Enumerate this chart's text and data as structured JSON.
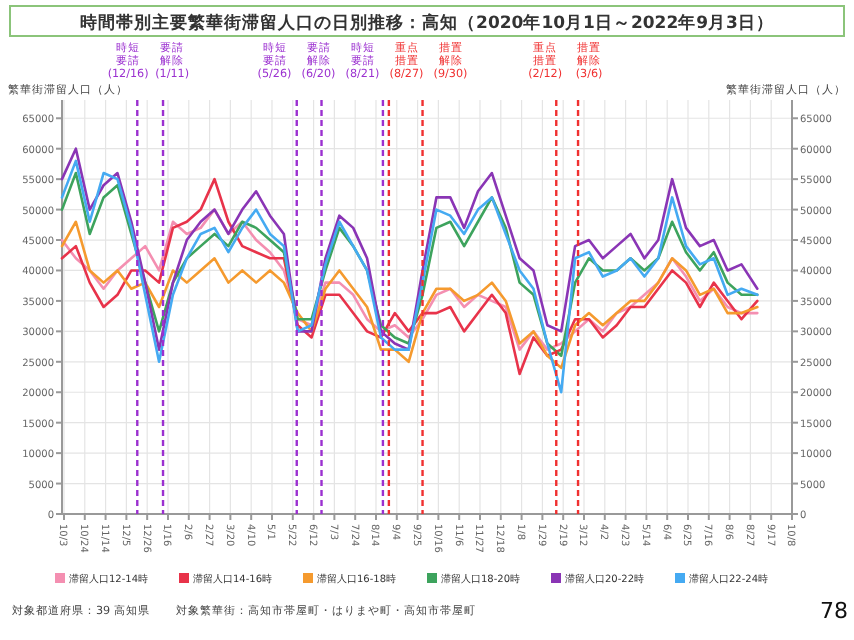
{
  "chart_data": {
    "type": "line",
    "title": "時間帯別主要繁華街滞留人口の日別推移：高知（2020年10月1日～2022年9月3日）",
    "ylabel": "繁華街滞留人口（人）",
    "y2label": "繁華街滞留人口（人）",
    "x": [
      "2020-10-01",
      "2020-10-15",
      "2020-10-29",
      "2020-11-12",
      "2020-11-26",
      "2020-12-10",
      "2020-12-24",
      "2021-01-07",
      "2021-01-21",
      "2021-02-04",
      "2021-02-18",
      "2021-03-04",
      "2021-03-18",
      "2021-04-01",
      "2021-04-15",
      "2021-04-29",
      "2021-05-13",
      "2021-05-27",
      "2021-06-10",
      "2021-06-24",
      "2021-07-08",
      "2021-07-22",
      "2021-08-05",
      "2021-08-19",
      "2021-09-02",
      "2021-09-16",
      "2021-09-30",
      "2021-10-14",
      "2021-10-28",
      "2021-11-11",
      "2021-11-25",
      "2021-12-09",
      "2021-12-23",
      "2022-01-06",
      "2022-01-20",
      "2022-02-03",
      "2022-02-17",
      "2022-03-03",
      "2022-03-17",
      "2022-03-31",
      "2022-04-14",
      "2022-04-28",
      "2022-05-12",
      "2022-05-26",
      "2022-06-09",
      "2022-06-23",
      "2022-07-07",
      "2022-07-21",
      "2022-08-04",
      "2022-08-18",
      "2022-09-03"
    ],
    "series": [
      {
        "name": "滞留人口12-14時",
        "color": "#f48fb1",
        "values": [
          45000,
          42000,
          40000,
          37000,
          40000,
          42000,
          44000,
          40000,
          48000,
          46000,
          47000,
          50000,
          46000,
          48000,
          45000,
          43000,
          40000,
          32000,
          31000,
          38000,
          38000,
          36000,
          32000,
          30000,
          31000,
          29000,
          32000,
          36000,
          37000,
          34000,
          36000,
          35000,
          34000,
          27000,
          30000,
          27000,
          28000,
          30000,
          32000,
          30000,
          33000,
          34000,
          36000,
          38000,
          42000,
          39000,
          35000,
          37000,
          34000,
          33000,
          33000
        ]
      },
      {
        "name": "滞留人口14-16時",
        "color": "#e8334a",
        "values": [
          42000,
          44000,
          38000,
          34000,
          36000,
          40000,
          40000,
          38000,
          47000,
          48000,
          50000,
          55000,
          48000,
          44000,
          43000,
          42000,
          42000,
          31000,
          29000,
          36000,
          36000,
          33000,
          30000,
          29000,
          33000,
          30000,
          33000,
          33000,
          34000,
          30000,
          33000,
          36000,
          33000,
          23000,
          29000,
          26000,
          27000,
          32000,
          32000,
          29000,
          31000,
          34000,
          34000,
          37000,
          40000,
          38000,
          34000,
          38000,
          35000,
          32000,
          35000
        ]
      },
      {
        "name": "滞留人口16-18時",
        "color": "#f59a2e",
        "values": [
          44000,
          48000,
          40000,
          38000,
          40000,
          37000,
          38000,
          34000,
          40000,
          38000,
          40000,
          42000,
          38000,
          40000,
          38000,
          40000,
          38000,
          33000,
          30000,
          37000,
          40000,
          37000,
          34000,
          27000,
          27000,
          25000,
          33000,
          37000,
          37000,
          35000,
          36000,
          38000,
          35000,
          28000,
          30000,
          26000,
          24000,
          31000,
          33000,
          31000,
          33000,
          35000,
          35000,
          38000,
          42000,
          40000,
          36000,
          37000,
          33000,
          33000,
          34000
        ]
      },
      {
        "name": "滞留人口18-20時",
        "color": "#3da35d",
        "values": [
          50000,
          56000,
          46000,
          52000,
          54000,
          46000,
          38000,
          30000,
          38000,
          42000,
          44000,
          46000,
          44000,
          48000,
          47000,
          45000,
          43000,
          32000,
          32000,
          40000,
          47000,
          44000,
          40000,
          31000,
          29000,
          28000,
          36000,
          47000,
          48000,
          44000,
          48000,
          52000,
          47000,
          38000,
          36000,
          28000,
          26000,
          38000,
          42000,
          40000,
          40000,
          42000,
          40000,
          42000,
          48000,
          43000,
          40000,
          43000,
          38000,
          36000,
          36000
        ]
      },
      {
        "name": "滞留人口20-22時",
        "color": "#8a35b5",
        "values": [
          55000,
          60000,
          50000,
          54000,
          56000,
          48000,
          38000,
          27000,
          38000,
          45000,
          48000,
          50000,
          46000,
          50000,
          53000,
          49000,
          46000,
          30000,
          30000,
          42000,
          49000,
          47000,
          42000,
          30000,
          28000,
          27000,
          40000,
          52000,
          52000,
          47000,
          53000,
          56000,
          49000,
          42000,
          40000,
          31000,
          30000,
          44000,
          45000,
          42000,
          44000,
          46000,
          42000,
          45000,
          55000,
          47000,
          44000,
          45000,
          40000,
          41000,
          37000
        ]
      },
      {
        "name": "滞留人口22-24時",
        "color": "#45aaf2",
        "values": [
          52000,
          58000,
          48000,
          56000,
          55000,
          47000,
          36000,
          25000,
          36000,
          42000,
          46000,
          47000,
          43000,
          47000,
          50000,
          46000,
          44000,
          30000,
          31000,
          41000,
          48000,
          44000,
          40000,
          29000,
          27000,
          27000,
          38000,
          50000,
          49000,
          46000,
          50000,
          52000,
          46000,
          40000,
          37000,
          28000,
          20000,
          42000,
          43000,
          39000,
          40000,
          42000,
          39000,
          42000,
          52000,
          44000,
          41000,
          42000,
          36000,
          37000,
          36000
        ]
      }
    ],
    "xlim": [
      "2020-10-01",
      "2022-10-08"
    ],
    "xticks": [
      {
        "value": "2020-10-03",
        "label": "10/3"
      },
      {
        "value": "2020-10-24",
        "label": "10/24"
      },
      {
        "value": "2020-11-14",
        "label": "11/14"
      },
      {
        "value": "2020-12-05",
        "label": "12/5"
      },
      {
        "value": "2020-12-26",
        "label": "12/26"
      },
      {
        "value": "2021-01-16",
        "label": "1/16"
      },
      {
        "value": "2021-02-06",
        "label": "2/6"
      },
      {
        "value": "2021-02-27",
        "label": "2/27"
      },
      {
        "value": "2021-03-20",
        "label": "3/20"
      },
      {
        "value": "2021-04-10",
        "label": "4/10"
      },
      {
        "value": "2021-05-01",
        "label": "5/1"
      },
      {
        "value": "2021-05-22",
        "label": "5/22"
      },
      {
        "value": "2021-06-12",
        "label": "6/12"
      },
      {
        "value": "2021-07-03",
        "label": "7/3"
      },
      {
        "value": "2021-07-24",
        "label": "7/24"
      },
      {
        "value": "2021-08-14",
        "label": "8/14"
      },
      {
        "value": "2021-09-04",
        "label": "9/4"
      },
      {
        "value": "2021-09-25",
        "label": "9/25"
      },
      {
        "value": "2021-10-16",
        "label": "10/16"
      },
      {
        "value": "2021-11-06",
        "label": "11/6"
      },
      {
        "value": "2021-11-27",
        "label": "11/27"
      },
      {
        "value": "2021-12-18",
        "label": "12/18"
      },
      {
        "value": "2022-01-08",
        "label": "1/8"
      },
      {
        "value": "2022-01-29",
        "label": "1/29"
      },
      {
        "value": "2022-02-19",
        "label": "2/19"
      },
      {
        "value": "2022-03-12",
        "label": "3/12"
      },
      {
        "value": "2022-04-02",
        "label": "4/2"
      },
      {
        "value": "2022-04-23",
        "label": "4/23"
      },
      {
        "value": "2022-05-14",
        "label": "5/14"
      },
      {
        "value": "2022-06-04",
        "label": "6/4"
      },
      {
        "value": "2022-06-25",
        "label": "6/25"
      },
      {
        "value": "2022-07-16",
        "label": "7/16"
      },
      {
        "value": "2022-08-06",
        "label": "8/6"
      },
      {
        "value": "2022-08-27",
        "label": "8/27"
      },
      {
        "value": "2022-09-17",
        "label": "9/17"
      },
      {
        "value": "2022-10-08",
        "label": "10/8"
      }
    ],
    "ylim": [
      0,
      68000
    ],
    "yticks": [
      0,
      5000,
      10000,
      15000,
      20000,
      25000,
      30000,
      35000,
      40000,
      45000,
      50000,
      55000,
      60000,
      65000
    ],
    "y2lim": [
      0,
      68000
    ],
    "y2ticks": [
      0,
      5000,
      10000,
      15000,
      20000,
      25000,
      30000,
      35000,
      40000,
      45000,
      50000,
      55000,
      60000,
      65000
    ],
    "ref_lines": [
      {
        "axis": "x",
        "value": "2020-12-16",
        "label": "時短要請(12/16)",
        "color": "#9b30d0",
        "line_style": "dashed"
      },
      {
        "axis": "x",
        "value": "2021-01-11",
        "label": "要請解除(1/11)",
        "color": "#9b30d0",
        "line_style": "dashed"
      },
      {
        "axis": "x",
        "value": "2021-05-26",
        "label": "時短要請(5/26)",
        "color": "#9b30d0",
        "line_style": "dashed"
      },
      {
        "axis": "x",
        "value": "2021-06-20",
        "label": "要請解除(6/20)",
        "color": "#9b30d0",
        "line_style": "dashed"
      },
      {
        "axis": "x",
        "value": "2021-08-21",
        "label": "時短要請(8/21)",
        "color": "#9b30d0",
        "line_style": "dashed"
      },
      {
        "axis": "x",
        "value": "2021-08-27",
        "label": "重点措置(8/27)",
        "color": "#f03030",
        "line_style": "dashed"
      },
      {
        "axis": "x",
        "value": "2021-09-30",
        "label": "措置解除(9/30)",
        "color": "#f03030",
        "line_style": "dashed"
      },
      {
        "axis": "x",
        "value": "2022-02-12",
        "label": "重点措置(2/12)",
        "color": "#f03030",
        "line_style": "dashed"
      },
      {
        "axis": "x",
        "value": "2022-03-06",
        "label": "措置解除(3/6)",
        "color": "#f03030",
        "line_style": "dashed"
      }
    ],
    "annotations": [
      "対象都道府県：39 高知県",
      "対象繁華街：高知市帯屋町・はりまや町・高知市帯屋町",
      "78"
    ],
    "grid": true,
    "legend": "bottom",
    "line_style": "solid",
    "marker": "none"
  }
}
